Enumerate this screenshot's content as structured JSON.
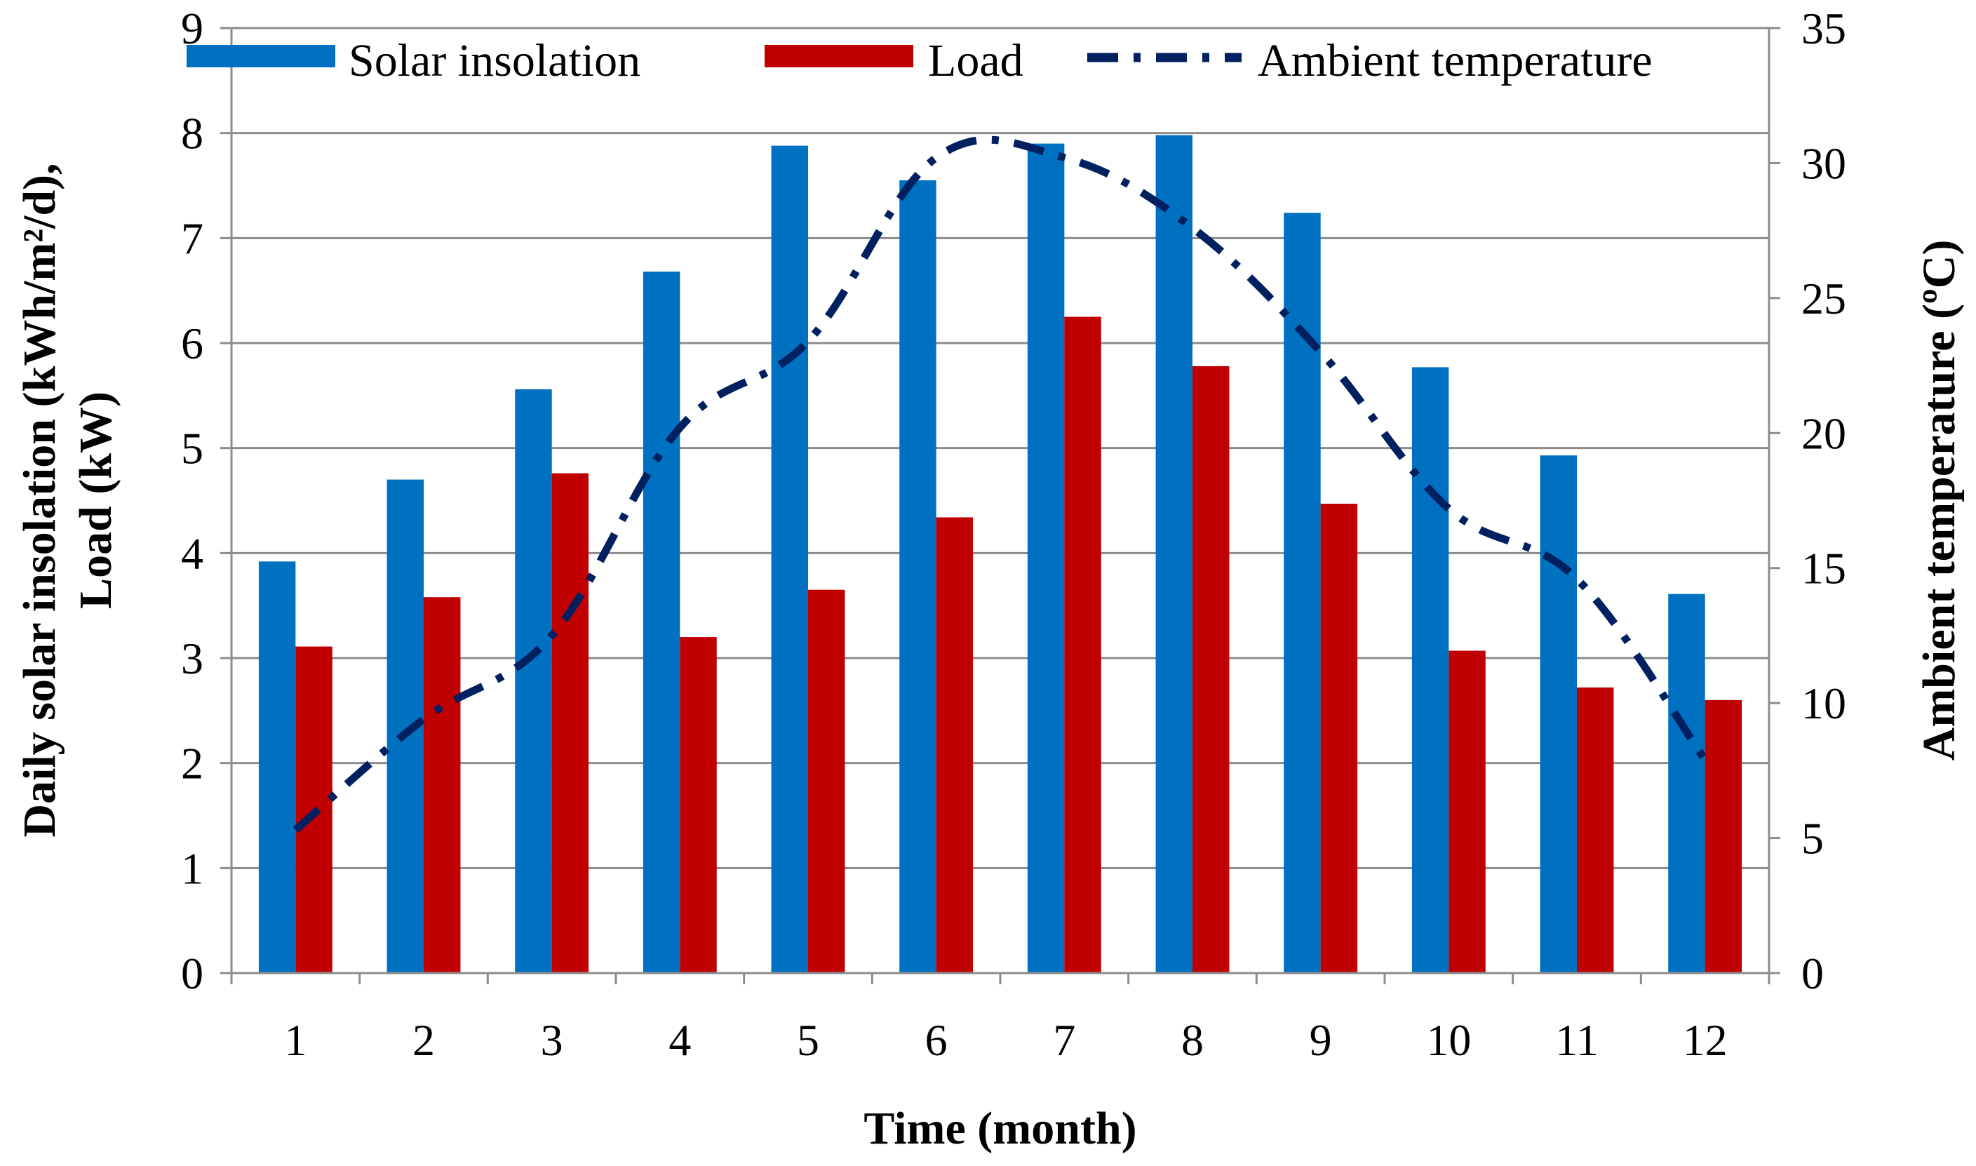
{
  "chart_data": {
    "type": "bar",
    "categories": [
      "1",
      "2",
      "3",
      "4",
      "5",
      "6",
      "7",
      "8",
      "9",
      "10",
      "11",
      "12"
    ],
    "series": [
      {
        "name": "Solar insolation",
        "kind": "bar",
        "axis": "left",
        "color": "#0070c0",
        "values": [
          3.92,
          4.7,
          5.56,
          6.68,
          7.88,
          7.55,
          7.9,
          7.98,
          7.24,
          5.77,
          4.93,
          3.61
        ]
      },
      {
        "name": "Load",
        "kind": "bar",
        "axis": "left",
        "color": "#c00000",
        "values": [
          3.11,
          3.58,
          4.76,
          3.2,
          3.65,
          4.34,
          6.25,
          5.78,
          4.47,
          3.07,
          2.72,
          2.6
        ]
      },
      {
        "name": "Ambient temperature",
        "kind": "line",
        "axis": "right",
        "color": "#002060",
        "style": "dash-dot",
        "values": [
          5.3,
          9.4,
          12.5,
          20.2,
          23.4,
          30.2,
          30.2,
          27.6,
          23.0,
          17.2,
          14.6,
          7.9
        ]
      }
    ],
    "xlabel": "Time (month)",
    "ylabel_lines": [
      "Daily solar insolation (kWh/m²/d),",
      "Load (kW)"
    ],
    "y2label": "Ambient temperature (ºC)",
    "ylim": [
      0,
      9
    ],
    "yticks": [
      "0",
      "1",
      "2",
      "3",
      "4",
      "5",
      "6",
      "7",
      "8",
      "9"
    ],
    "y2lim": [
      0,
      35
    ],
    "y2ticks": [
      "0",
      "5",
      "10",
      "15",
      "20",
      "25",
      "30",
      "35"
    ],
    "grid": true,
    "legend_position": "top"
  }
}
